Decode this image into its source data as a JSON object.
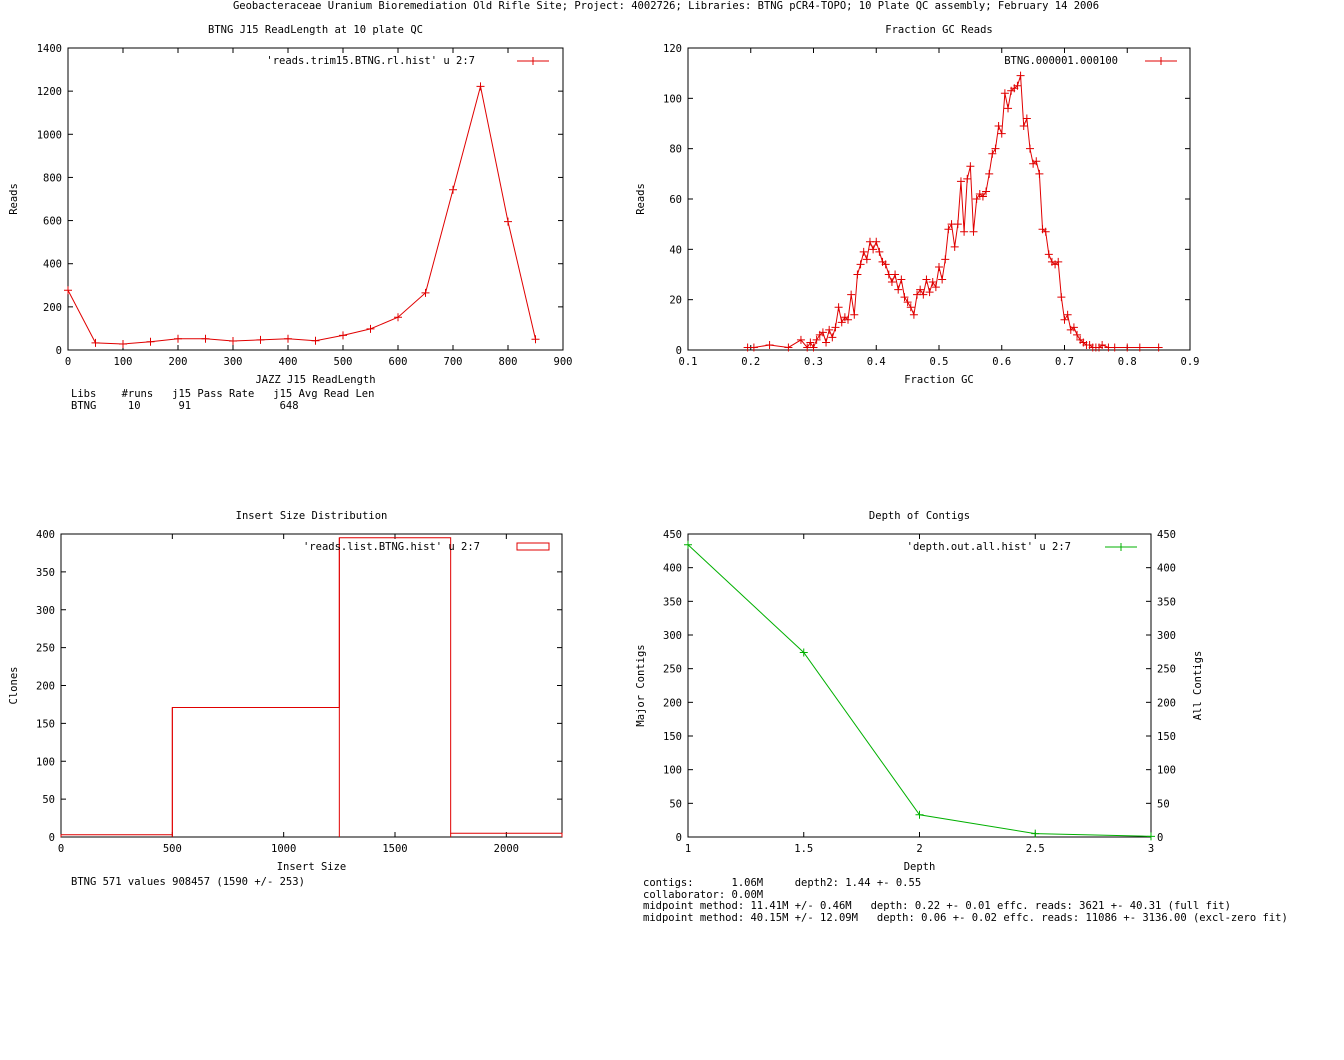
{
  "page": {
    "title": "Geobacteraceae Uranium Bioremediation Old Rifle Site; Project: 4002726; Libraries: BTNG pCR4-TOPO; 10 Plate QC assembly; February 14 2006"
  },
  "colors": {
    "series_red": "#e00000",
    "series_green": "#00b000",
    "axis": "#000000"
  },
  "panels": {
    "readlength": {
      "stats_lines": [
        "Libs    #runs   j15 Pass Rate   j15 Avg Read Len",
        "BTNG     10      91              648"
      ]
    },
    "depth": {
      "stats_lines": [
        "contigs:      1.06M     depth2: 1.44 +- 0.55",
        "collaborator: 0.00M",
        "midpoint method: 11.41M +/- 0.46M   depth: 0.22 +- 0.01 effc. reads: 3621 +- 40.31 (full fit)",
        "midpoint method: 40.15M +/- 12.09M   depth: 0.06 +- 0.02 effc. reads: 11086 +- 3136.00 (excl-zero fit)"
      ]
    },
    "insert": {
      "stats_lines": [
        "BTNG 571 values 908457 (1590 +/- 253)"
      ]
    }
  },
  "chart_data": [
    {
      "id": "readlength",
      "type": "line",
      "title": "BTNG J15 ReadLength at 10 plate QC",
      "xlabel": "JAZZ J15 ReadLength",
      "ylabel": "Reads",
      "xlim": [
        0,
        900
      ],
      "ylim": [
        0,
        1400
      ],
      "xticks": [
        0,
        100,
        200,
        300,
        400,
        500,
        600,
        700,
        800,
        900
      ],
      "yticks": [
        0,
        200,
        400,
        600,
        800,
        1000,
        1200,
        1400
      ],
      "legend_position": "top-right",
      "series": [
        {
          "name": "'reads.trim15.BTNG.rl.hist' u 2:7",
          "color": "#e00000",
          "marker": "plus",
          "x": [
            0,
            50,
            100,
            150,
            200,
            250,
            300,
            350,
            400,
            450,
            500,
            550,
            600,
            650,
            700,
            750,
            800,
            850
          ],
          "y": [
            277,
            33,
            28,
            38,
            52,
            52,
            42,
            47,
            52,
            43,
            68,
            98,
            152,
            265,
            743,
            1222,
            595,
            50
          ]
        }
      ]
    },
    {
      "id": "gc",
      "type": "line",
      "title": "Fraction GC Reads",
      "xlabel": "Fraction GC",
      "ylabel": "Reads",
      "xlim": [
        0.1,
        0.9
      ],
      "ylim": [
        0,
        120
      ],
      "xticks": [
        0.1,
        0.2,
        0.3,
        0.4,
        0.5,
        0.6,
        0.7,
        0.8,
        0.9
      ],
      "yticks": [
        0,
        20,
        40,
        60,
        80,
        100,
        120
      ],
      "legend_position": "top-right",
      "series": [
        {
          "name": "BTNG.000001.000100",
          "color": "#e00000",
          "marker": "plus",
          "x": [
            0.195,
            0.205,
            0.23,
            0.26,
            0.28,
            0.29,
            0.295,
            0.3,
            0.305,
            0.31,
            0.315,
            0.32,
            0.325,
            0.33,
            0.335,
            0.34,
            0.345,
            0.35,
            0.355,
            0.36,
            0.365,
            0.37,
            0.375,
            0.38,
            0.385,
            0.39,
            0.395,
            0.4,
            0.405,
            0.41,
            0.415,
            0.42,
            0.425,
            0.43,
            0.435,
            0.44,
            0.445,
            0.45,
            0.455,
            0.46,
            0.465,
            0.47,
            0.475,
            0.48,
            0.485,
            0.49,
            0.495,
            0.5,
            0.505,
            0.51,
            0.515,
            0.52,
            0.525,
            0.53,
            0.535,
            0.54,
            0.545,
            0.55,
            0.555,
            0.56,
            0.565,
            0.57,
            0.575,
            0.58,
            0.585,
            0.59,
            0.595,
            0.6,
            0.605,
            0.61,
            0.615,
            0.62,
            0.625,
            0.63,
            0.635,
            0.64,
            0.645,
            0.65,
            0.655,
            0.66,
            0.665,
            0.67,
            0.675,
            0.68,
            0.685,
            0.69,
            0.695,
            0.7,
            0.705,
            0.71,
            0.715,
            0.72,
            0.725,
            0.73,
            0.735,
            0.74,
            0.745,
            0.75,
            0.755,
            0.76,
            0.77,
            0.78,
            0.8,
            0.82,
            0.85
          ],
          "y": [
            1,
            1,
            2,
            1,
            4,
            1,
            3,
            1,
            4,
            6,
            7,
            3,
            8,
            5,
            9,
            17,
            11,
            13,
            12,
            22,
            14,
            30,
            34,
            39,
            36,
            43,
            40,
            43,
            39,
            35,
            34,
            30,
            27,
            30,
            24,
            28,
            21,
            19,
            17,
            14,
            22,
            24,
            22,
            28,
            23,
            27,
            25,
            33,
            28,
            36,
            48,
            50,
            41,
            50,
            67,
            47,
            68,
            73,
            47,
            60,
            62,
            61,
            63,
            70,
            78,
            80,
            89,
            86,
            102,
            96,
            103,
            104,
            105,
            109,
            89,
            92,
            80,
            74,
            75,
            70,
            48,
            47,
            38,
            35,
            34,
            35,
            21,
            12,
            14,
            8,
            9,
            6,
            4,
            3,
            2,
            2,
            1,
            1,
            1,
            2,
            1,
            1,
            1,
            1,
            1
          ]
        }
      ]
    },
    {
      "id": "insert",
      "type": "histogram",
      "title": "Insert Size Distribution",
      "xlabel": "Insert Size",
      "ylabel": "Clones",
      "xlim": [
        0,
        2250
      ],
      "ylim": [
        0,
        400
      ],
      "xticks": [
        0,
        500,
        1000,
        1500,
        2000
      ],
      "yticks": [
        0,
        50,
        100,
        150,
        200,
        250,
        300,
        350,
        400
      ],
      "legend_position": "top-right",
      "series": [
        {
          "name": "'reads.list.BTNG.hist' u 2:7",
          "color": "#e00000",
          "steps": [
            {
              "x0": 0,
              "x1": 500,
              "y": 3
            },
            {
              "x0": 500,
              "x1": 1250,
              "y": 171
            },
            {
              "x0": 1250,
              "x1": 1750,
              "y": 395
            },
            {
              "x0": 1750,
              "x1": 2250,
              "y": 5
            }
          ]
        }
      ]
    },
    {
      "id": "depth",
      "type": "line",
      "title": "Depth of Contigs",
      "xlabel": "Depth",
      "ylabel": "Major Contigs",
      "y2label": "All Contigs",
      "xlim": [
        1,
        3
      ],
      "ylim": [
        0,
        450
      ],
      "xticks": [
        1,
        1.5,
        2,
        2.5,
        3
      ],
      "yticks": [
        0,
        50,
        100,
        150,
        200,
        250,
        300,
        350,
        400,
        450
      ],
      "legend_position": "top-right",
      "series": [
        {
          "name": "'depth.out.all.hist' u 2:7",
          "color": "#00b000",
          "marker": "plus",
          "x": [
            1,
            1.5,
            2,
            2.5,
            3
          ],
          "y": [
            434,
            274,
            33,
            5,
            1
          ]
        }
      ]
    }
  ]
}
